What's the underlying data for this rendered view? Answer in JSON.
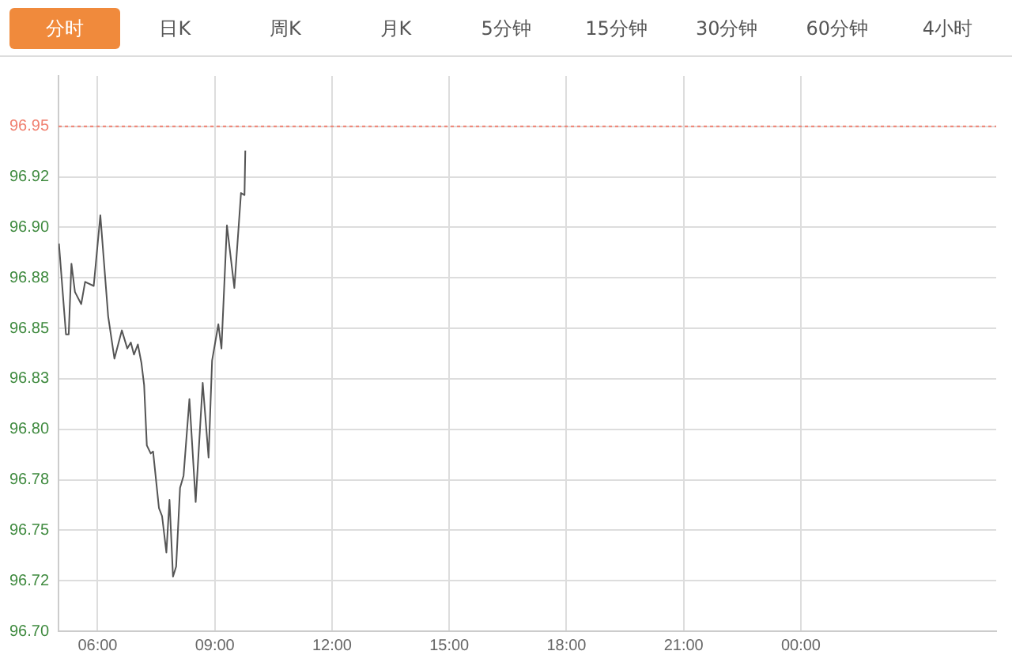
{
  "chart_data": {
    "type": "line",
    "annotations": [
      "分时",
      "日K",
      "周K",
      "月K",
      "5分钟",
      "15分钟",
      "30分钟",
      "60分钟",
      "4小时"
    ],
    "x": [
      5.01,
      5.19,
      5.26,
      5.33,
      5.42,
      5.58,
      5.68,
      5.9,
      6.07,
      6.27,
      6.43,
      6.62,
      6.76,
      6.85,
      6.93,
      7.03,
      7.12,
      7.19,
      7.26,
      7.36,
      7.42,
      7.57,
      7.65,
      7.76,
      7.84,
      7.93,
      8.01,
      8.11,
      8.2,
      8.35,
      8.51,
      8.69,
      8.84,
      8.93,
      9.09,
      9.17,
      9.31,
      9.5,
      9.67,
      9.76,
      9.78
    ],
    "series": [
      {
        "color": "#555555",
        "values": [
          96.892,
          96.847,
          96.847,
          96.882,
          96.868,
          96.862,
          96.873,
          96.871,
          96.906,
          96.856,
          96.835,
          96.849,
          96.84,
          96.843,
          96.837,
          96.842,
          96.833,
          96.822,
          96.792,
          96.788,
          96.789,
          96.761,
          96.757,
          96.739,
          96.765,
          96.727,
          96.732,
          96.771,
          96.777,
          96.815,
          96.764,
          96.823,
          96.786,
          96.834,
          96.852,
          96.84,
          96.901,
          96.87,
          96.917,
          96.916,
          96.938
        ]
      }
    ],
    "xlim": [
      5,
      29
    ],
    "xticks": [
      {
        "value": 6,
        "label": "06:00"
      },
      {
        "value": 9,
        "label": "09:00"
      },
      {
        "value": 12,
        "label": "12:00"
      },
      {
        "value": 15,
        "label": "15:00"
      },
      {
        "value": 18,
        "label": "18:00"
      },
      {
        "value": 21,
        "label": "21:00"
      },
      {
        "value": 24,
        "label": "00:00"
      }
    ],
    "ylim": [
      96.7,
      96.975
    ],
    "yticks": [
      {
        "value": 96.7,
        "label": "96.70"
      },
      {
        "value": 96.725,
        "label": "96.72"
      },
      {
        "value": 96.75,
        "label": "96.75"
      },
      {
        "value": 96.775,
        "label": "96.78"
      },
      {
        "value": 96.8,
        "label": "96.80"
      },
      {
        "value": 96.825,
        "label": "96.83"
      },
      {
        "value": 96.85,
        "label": "96.85"
      },
      {
        "value": 96.875,
        "label": "96.88"
      },
      {
        "value": 96.9,
        "label": "96.90"
      },
      {
        "value": 96.925,
        "label": "96.92"
      },
      {
        "value": 96.95,
        "label": "96.95"
      }
    ],
    "ref_lines": [
      {
        "axis": "y",
        "value": 96.95,
        "color": "#f08070",
        "line_style": "dotted"
      }
    ],
    "grid": true,
    "legend": false,
    "marker": "none",
    "line_style": "solid"
  }
}
